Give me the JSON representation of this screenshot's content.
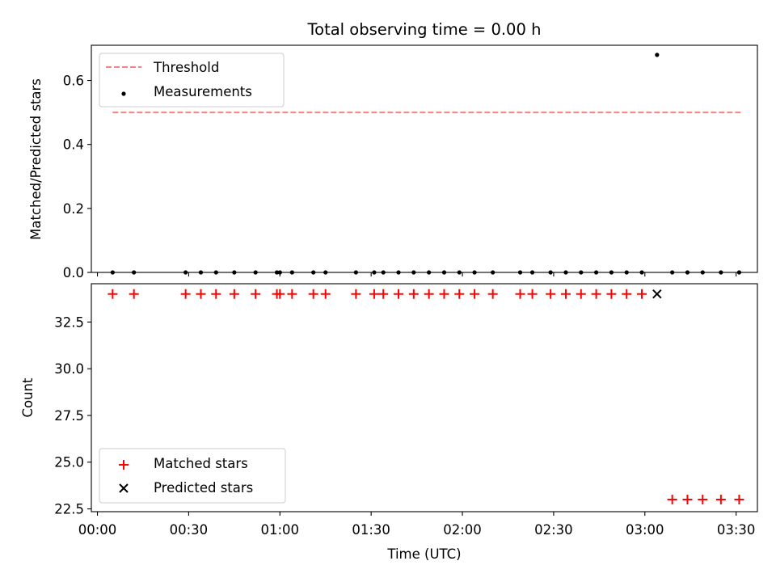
{
  "chart_data": [
    {
      "type": "scatter",
      "title": "Total observing time = 0.00 h",
      "ylabel": "Matched/Predicted stars",
      "ylim": [
        0,
        0.71
      ],
      "yticks": [
        "0.0",
        "0.2",
        "0.4",
        "0.6"
      ],
      "ytick_values": [
        0,
        0.2,
        0.4,
        0.6
      ],
      "xlim_minutes": [
        -2,
        217
      ],
      "grid": false,
      "legend_location": "upper-left",
      "series": [
        {
          "name": "Threshold",
          "kind": "line-dashed",
          "color": "#ff7f7f",
          "x_minutes": [
            5,
            212
          ],
          "y": [
            0.5,
            0.5
          ]
        },
        {
          "name": "Measurements",
          "kind": "points",
          "color": "#000000",
          "x_minutes": [
            5,
            12,
            29,
            34,
            39,
            45,
            52,
            59,
            60,
            64,
            71,
            75,
            85,
            91,
            94,
            99,
            104,
            109,
            114,
            119,
            124,
            130,
            139,
            143,
            149,
            154,
            159,
            164,
            169,
            174,
            179,
            184,
            189,
            194,
            199,
            205,
            211
          ],
          "y": [
            0,
            0,
            0,
            0,
            0,
            0,
            0,
            0,
            0,
            0,
            0,
            0,
            0,
            0,
            0,
            0,
            0,
            0,
            0,
            0,
            0,
            0,
            0,
            0,
            0,
            0,
            0,
            0,
            0,
            0,
            0,
            0.68,
            0,
            0,
            0,
            0,
            0
          ]
        }
      ]
    },
    {
      "type": "scatter",
      "xlabel": "Time (UTC)",
      "ylabel": "Count",
      "ylim": [
        22.35,
        34.55
      ],
      "yticks": [
        "22.5",
        "25.0",
        "27.5",
        "30.0",
        "32.5"
      ],
      "ytick_values": [
        22.5,
        25.0,
        27.5,
        30.0,
        32.5
      ],
      "xticks": [
        "00:00",
        "00:30",
        "01:00",
        "01:30",
        "02:00",
        "02:30",
        "03:00",
        "03:30"
      ],
      "xtick_minutes": [
        0,
        30,
        60,
        90,
        120,
        150,
        180,
        210
      ],
      "xlim_minutes": [
        -2,
        217
      ],
      "grid": false,
      "legend_location": "lower-left",
      "series": [
        {
          "name": "Matched stars",
          "marker": "plus",
          "color": "#ff0000",
          "x_minutes": [
            5,
            12,
            29,
            34,
            39,
            45,
            52,
            59,
            60,
            64,
            71,
            75,
            85,
            91,
            94,
            99,
            104,
            109,
            114,
            119,
            124,
            130,
            139,
            143,
            149,
            154,
            159,
            164,
            169,
            174,
            179,
            189,
            194,
            199,
            205,
            211
          ],
          "y": [
            34,
            34,
            34,
            34,
            34,
            34,
            34,
            34,
            34,
            34,
            34,
            34,
            34,
            34,
            34,
            34,
            34,
            34,
            34,
            34,
            34,
            34,
            34,
            34,
            34,
            34,
            34,
            34,
            34,
            34,
            34,
            23,
            23,
            23,
            23,
            23
          ]
        },
        {
          "name": "Predicted stars",
          "marker": "x",
          "color": "#000000",
          "x_minutes": [
            184
          ],
          "y": [
            34
          ]
        }
      ]
    }
  ]
}
